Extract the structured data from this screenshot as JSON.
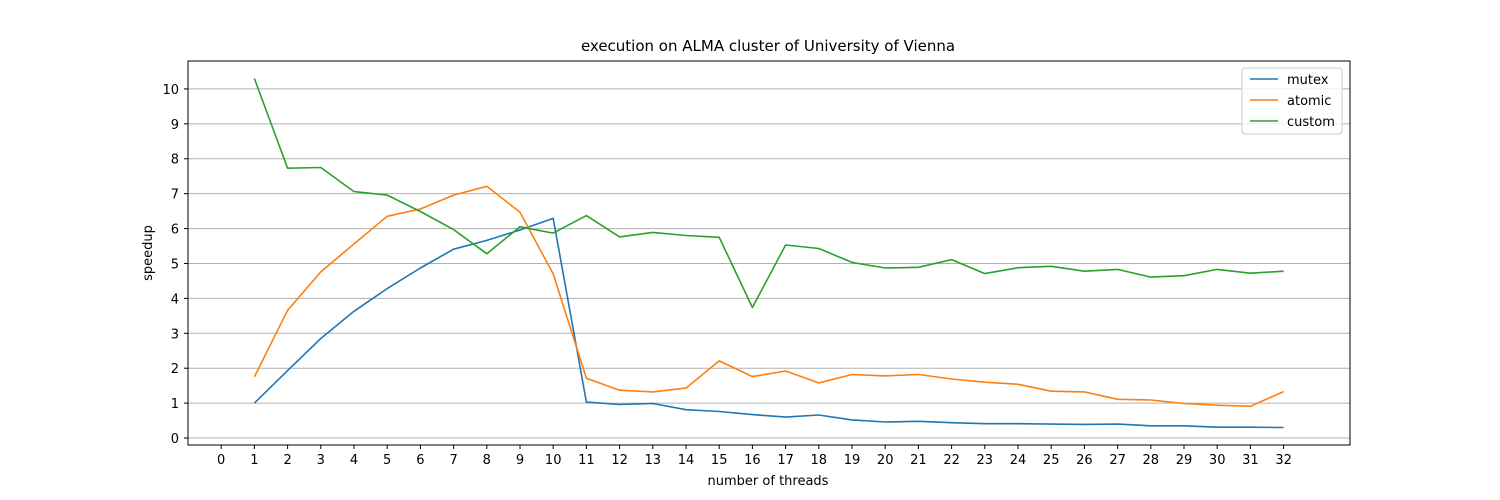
{
  "chart_data": {
    "type": "line",
    "title": "execution on ALMA cluster of University of Vienna",
    "xlabel": "number of threads",
    "ylabel": "speedup",
    "xlim": [
      -1,
      34
    ],
    "ylim": [
      -0.2,
      10.8
    ],
    "x_ticks": [
      0,
      1,
      2,
      3,
      4,
      5,
      6,
      7,
      8,
      9,
      10,
      11,
      12,
      13,
      14,
      15,
      16,
      17,
      18,
      19,
      20,
      21,
      22,
      23,
      24,
      25,
      26,
      27,
      28,
      29,
      30,
      31,
      32
    ],
    "y_ticks": [
      0,
      1,
      2,
      3,
      4,
      5,
      6,
      7,
      8,
      9,
      10
    ],
    "grid": "y-major",
    "legend_position": "top-right",
    "x": [
      1,
      2,
      3,
      4,
      5,
      6,
      7,
      8,
      9,
      10,
      11,
      12,
      13,
      14,
      15,
      16,
      17,
      18,
      19,
      20,
      21,
      22,
      23,
      24,
      25,
      26,
      27,
      28,
      29,
      30,
      31,
      32
    ],
    "series": [
      {
        "name": "mutex",
        "color": "#1f77b4",
        "values": [
          1.0,
          1.93,
          2.85,
          3.63,
          4.28,
          4.87,
          5.41,
          5.66,
          5.96,
          6.29,
          1.03,
          0.96,
          0.99,
          0.81,
          0.76,
          0.67,
          0.6,
          0.66,
          0.52,
          0.46,
          0.48,
          0.44,
          0.41,
          0.41,
          0.4,
          0.39,
          0.4,
          0.35,
          0.35,
          0.31,
          0.31,
          0.3
        ]
      },
      {
        "name": "atomic",
        "color": "#ff7f0e",
        "values": [
          1.75,
          3.66,
          4.76,
          5.56,
          6.35,
          6.56,
          6.96,
          7.21,
          6.47,
          4.7,
          1.71,
          1.37,
          1.32,
          1.43,
          2.21,
          1.76,
          1.92,
          1.58,
          1.82,
          1.78,
          1.82,
          1.69,
          1.6,
          1.54,
          1.34,
          1.32,
          1.11,
          1.09,
          0.99,
          0.94,
          0.91,
          1.33
        ]
      },
      {
        "name": "custom",
        "color": "#2ca02c",
        "values": [
          10.3,
          7.73,
          7.75,
          7.06,
          6.96,
          6.49,
          5.97,
          5.28,
          6.05,
          5.87,
          6.37,
          5.76,
          5.89,
          5.8,
          5.75,
          3.74,
          5.53,
          5.43,
          5.03,
          4.87,
          4.89,
          5.11,
          4.71,
          4.88,
          4.92,
          4.78,
          4.83,
          4.61,
          4.65,
          4.83,
          4.72,
          4.78
        ]
      }
    ]
  }
}
